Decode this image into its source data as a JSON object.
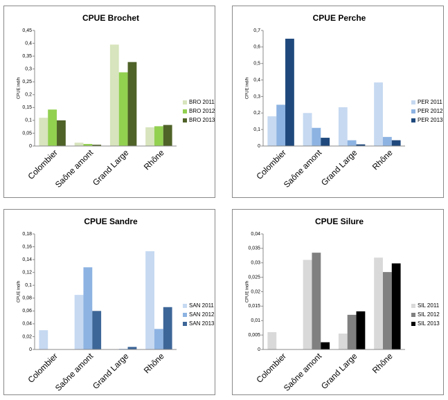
{
  "chart_data": [
    {
      "type": "bar",
      "title": "CPUE Brochet",
      "y_label": "CPUE ind/h",
      "categories": [
        "Colombier",
        "Saône amont",
        "Grand Large",
        "Rhône"
      ],
      "series": [
        {
          "name": "BRO 2011",
          "color": "#d7e4bd",
          "values": [
            0.11,
            0.013,
            0.395,
            0.073
          ]
        },
        {
          "name": "BRO 2012",
          "color": "#92d050",
          "values": [
            0.142,
            0.008,
            0.287,
            0.077
          ]
        },
        {
          "name": "BRO 2013",
          "color": "#4f6228",
          "values": [
            0.1,
            0.005,
            0.327,
            0.082
          ]
        }
      ],
      "ylim": [
        0,
        0.45
      ],
      "yticks": [
        0,
        {
          "value": 0.05,
          "label": "0,05"
        },
        {
          "value": 0.1,
          "label": "0,1"
        },
        {
          "value": 0.15,
          "label": "0,15"
        },
        {
          "value": 0.2,
          "label": "0,2"
        },
        {
          "value": 0.25,
          "label": "0,25"
        },
        {
          "value": 0.3,
          "label": "0,3"
        },
        {
          "value": 0.35,
          "label": "0,35"
        },
        {
          "value": 0.4,
          "label": "0,4"
        },
        {
          "value": 0.45,
          "label": "0,45"
        }
      ],
      "legend": "right"
    },
    {
      "type": "bar",
      "title": "CPUE Perche",
      "y_label": "CPUE ind/h",
      "categories": [
        "Colombier",
        "Saône amont",
        "Grand Large",
        "Rhône"
      ],
      "series": [
        {
          "name": "PER 2011",
          "color": "#c6d9f1",
          "values": [
            0.18,
            0.2,
            0.235,
            0.385
          ]
        },
        {
          "name": "PER 2012",
          "color": "#8db3e2",
          "values": [
            0.25,
            0.11,
            0.035,
            0.055
          ]
        },
        {
          "name": "PER 2013",
          "color": "#1f497d",
          "values": [
            0.65,
            0.05,
            0.01,
            0.035
          ]
        }
      ],
      "ylim": [
        0,
        0.7
      ],
      "yticks": [
        0,
        {
          "value": 0.1,
          "label": "0,1"
        },
        {
          "value": 0.2,
          "label": "0,2"
        },
        {
          "value": 0.3,
          "label": "0,3"
        },
        {
          "value": 0.4,
          "label": "0,4"
        },
        {
          "value": 0.5,
          "label": "0,5"
        },
        {
          "value": 0.6,
          "label": "0,6"
        },
        {
          "value": 0.7,
          "label": "0,7"
        }
      ],
      "legend": "right"
    },
    {
      "type": "bar",
      "title": "CPUE Sandre",
      "y_label": "CPUE ind/h",
      "categories": [
        "Colombier",
        "Saône amont",
        "Grand Large",
        "Rhône"
      ],
      "series": [
        {
          "name": "SAN 2011",
          "color": "#c6d9f1",
          "values": [
            0.03,
            0.085,
            0,
            0.153
          ]
        },
        {
          "name": "SAN 2012",
          "color": "#8db3e2",
          "values": [
            0,
            0.128,
            0.001,
            0.032
          ]
        },
        {
          "name": "SAN 2013",
          "color": "#3d6698",
          "values": [
            0,
            0.06,
            0.004,
            0.066
          ]
        }
      ],
      "ylim": [
        0,
        0.18
      ],
      "yticks": [
        0,
        {
          "value": 0.02,
          "label": "0,02"
        },
        {
          "value": 0.04,
          "label": "0,04"
        },
        {
          "value": 0.06,
          "label": "0,06"
        },
        {
          "value": 0.08,
          "label": "0,08"
        },
        {
          "value": 0.1,
          "label": "0,1"
        },
        {
          "value": 0.12,
          "label": "0,12"
        },
        {
          "value": 0.14,
          "label": "0,14"
        },
        {
          "value": 0.16,
          "label": "0,16"
        },
        {
          "value": 0.18,
          "label": "0,18"
        }
      ],
      "legend": "right"
    },
    {
      "type": "bar",
      "title": "CPUE Silure",
      "y_label": "CPUE ind/h",
      "categories": [
        "Colombier",
        "Saône amont",
        "Grand Large",
        "Rhône"
      ],
      "series": [
        {
          "name": "SIL 2011",
          "color": "#d9d9d9",
          "values": [
            0.006,
            0.031,
            0.0055,
            0.0318
          ]
        },
        {
          "name": "SIL 2012",
          "color": "#808080",
          "values": [
            0,
            0.0335,
            0.012,
            0.0268
          ]
        },
        {
          "name": "SIL 2013",
          "color": "#000000",
          "values": [
            0,
            0.0025,
            0.0132,
            0.0298
          ]
        }
      ],
      "ylim": [
        0,
        0.04
      ],
      "yticks": [
        0,
        {
          "value": 0.005,
          "label": "0,005"
        },
        {
          "value": 0.01,
          "label": "0,01"
        },
        {
          "value": 0.015,
          "label": "0,015"
        },
        {
          "value": 0.02,
          "label": "0,02"
        },
        {
          "value": 0.025,
          "label": "0,025"
        },
        {
          "value": 0.03,
          "label": "0,03"
        },
        {
          "value": 0.035,
          "label": "0,035"
        },
        {
          "value": 0.04,
          "label": "0,04"
        }
      ],
      "legend": "right"
    }
  ]
}
